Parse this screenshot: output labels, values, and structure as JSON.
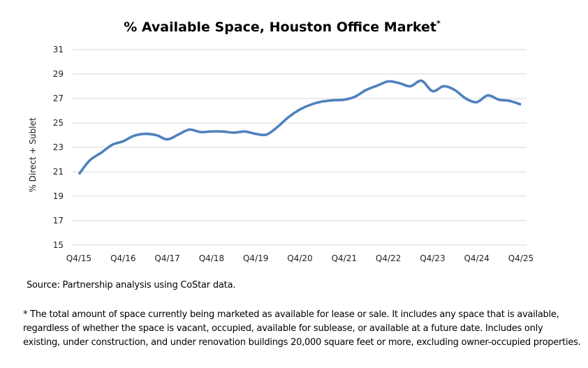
{
  "chart_data": {
    "type": "line",
    "title": "% Available Space, Houston Office Market",
    "title_superscript": "*",
    "xlabel": "",
    "ylabel": "% Direct + Sublet",
    "ylim": [
      15,
      31
    ],
    "yticks": [
      15,
      17,
      19,
      21,
      23,
      25,
      27,
      29,
      31
    ],
    "ytick_labels": [
      "15",
      "17",
      "19",
      "21",
      "23",
      "25",
      "27",
      "29",
      "31"
    ],
    "xtick_labels": [
      "Q4/15",
      "Q4/16",
      "Q4/17",
      "Q4/18",
      "Q4/19",
      "Q4/20",
      "Q4/21",
      "Q4/22",
      "Q4/23",
      "Q4/24",
      "Q4/25"
    ],
    "x_unit": "quarters since Q4/15",
    "grid": true,
    "line_color": "#4F81BD",
    "grid_color": "#D9D9D9",
    "series": [
      {
        "name": "% Direct + Sublet",
        "x": [
          0,
          1,
          2,
          3,
          4,
          5,
          6,
          7,
          8,
          9,
          10,
          11,
          12,
          13,
          14,
          15,
          16,
          17,
          18,
          19,
          20,
          21,
          22,
          23,
          24,
          25,
          26,
          27,
          28,
          29,
          30,
          31,
          32,
          33,
          34,
          35,
          36,
          37,
          38,
          39,
          40
        ],
        "values": [
          20.8,
          21.95,
          22.55,
          23.2,
          23.5,
          23.95,
          24.1,
          24.0,
          23.65,
          24.05,
          24.45,
          24.25,
          24.3,
          24.3,
          24.2,
          24.3,
          24.1,
          24.05,
          24.7,
          25.5,
          26.1,
          26.5,
          26.75,
          26.85,
          26.9,
          27.15,
          27.7,
          28.05,
          28.4,
          28.25,
          28.0,
          28.45,
          27.6,
          28.0,
          27.7,
          27.0,
          26.7,
          27.25,
          26.9,
          26.8,
          26.5
        ]
      }
    ]
  },
  "notes": {
    "source": "Source: Partnership analysis using CoStar data.",
    "footnote": "* The total amount of space currently being marketed as available for lease or sale. It includes any space that is available, regardless of whether the space is vacant, occupied, available for sublease, or available at a future date. Includes only existing, under construction, and under renovation buildings 20,000 square feet or more, excluding owner-occupied properties."
  }
}
